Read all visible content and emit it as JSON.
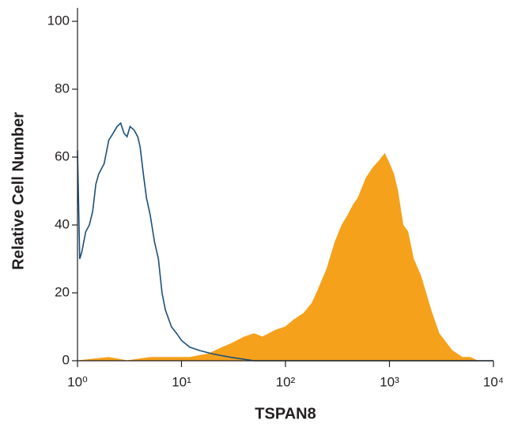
{
  "chart_data": {
    "type": "histogram-overlay",
    "x_label": "TSPAN8",
    "y_label": "Relative Cell Number",
    "xscale": "log",
    "xlim": [
      1,
      10000
    ],
    "ylim": [
      0,
      100
    ],
    "xticks": [
      {
        "value": 1,
        "label": "10⁰"
      },
      {
        "value": 10,
        "label": "10¹"
      },
      {
        "value": 100,
        "label": "10²"
      },
      {
        "value": 1000,
        "label": "10³"
      },
      {
        "value": 10000,
        "label": "10⁴"
      }
    ],
    "yticks": [
      0,
      20,
      40,
      60,
      80,
      100
    ],
    "series": [
      {
        "color": "#f5a11c",
        "fill": true,
        "x": [
          1,
          2,
          3,
          5,
          8,
          12,
          18,
          25,
          30,
          40,
          50,
          60,
          80,
          100,
          120,
          150,
          180,
          200,
          250,
          300,
          350,
          400,
          450,
          500,
          600,
          700,
          800,
          900,
          1000,
          1100,
          1200,
          1350,
          1500,
          1700,
          2000,
          2500,
          3000,
          4000,
          5000,
          6000,
          7000,
          10000
        ],
        "values": [
          0,
          1,
          0,
          1,
          1,
          1,
          2,
          4,
          5,
          7,
          8,
          7,
          9,
          10,
          12,
          14,
          17,
          20,
          27,
          35,
          40,
          43,
          46,
          48,
          54,
          57,
          59,
          61,
          58,
          55,
          50,
          40,
          38,
          30,
          25,
          15,
          8,
          3,
          1,
          1,
          0,
          0
        ]
      },
      {
        "color": "#1b4f7a",
        "fill": false,
        "x": [
          1,
          1.05,
          1.1,
          1.2,
          1.3,
          1.4,
          1.5,
          1.6,
          1.8,
          2,
          2.2,
          2.4,
          2.6,
          2.8,
          3,
          3.2,
          3.5,
          3.8,
          4,
          4.3,
          4.6,
          5,
          5.5,
          6,
          6.5,
          7,
          8,
          9,
          10,
          12,
          15,
          20,
          30,
          50,
          100,
          1000,
          10000
        ],
        "values": [
          62,
          30,
          32,
          38,
          40,
          44,
          52,
          55,
          58,
          65,
          67,
          69,
          70,
          67,
          66,
          69,
          68,
          66,
          63,
          55,
          48,
          43,
          35,
          30,
          20,
          15,
          10,
          8,
          6,
          4,
          3,
          2,
          1,
          0,
          0,
          0,
          0
        ]
      }
    ]
  }
}
